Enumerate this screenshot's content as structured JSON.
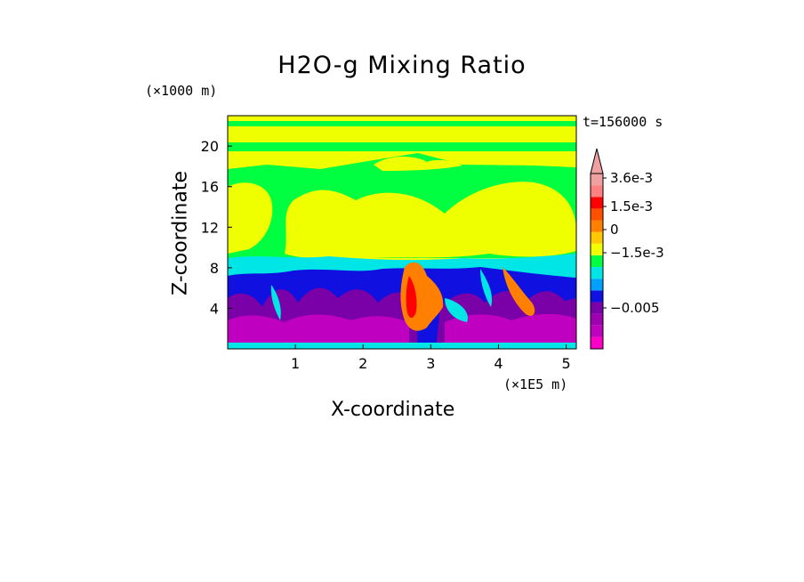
{
  "chart_data": {
    "type": "heatmap",
    "title": "H2O-g Mixing Ratio",
    "xlabel": "X-coordinate",
    "ylabel": "Z-coordinate",
    "x_unit": "(×1E5 m)",
    "y_unit": "(×1000 m)",
    "time_label": "t=156000 s",
    "xlim": [
      0,
      5.15
    ],
    "ylim": [
      0,
      23
    ],
    "x_ticks": [
      "1",
      "2",
      "3",
      "4",
      "5"
    ],
    "x_tick_values": [
      1,
      2,
      3,
      4,
      5
    ],
    "y_ticks": [
      "4",
      "8",
      "12",
      "16",
      "20"
    ],
    "y_tick_values": [
      4,
      8,
      12,
      16,
      20
    ],
    "colorbar": {
      "labels": [
        "3.6e-3",
        "1.5e-3",
        "0",
        "−1.5e-3",
        "−0.005"
      ],
      "colors": [
        "#ff00c8",
        "#c000c0",
        "#a000b0",
        "#7a00a8",
        "#1010e0",
        "#00a0ff",
        "#00e6e6",
        "#00ff40",
        "#f0ff00",
        "#ffc800",
        "#ff8000",
        "#ff5000",
        "#ff0000",
        "#ff8080",
        "#f0a0a0"
      ]
    },
    "layers": [
      {
        "name": "background",
        "color": "#f0ff00"
      },
      {
        "name": "upper-green-band",
        "color": "#00ff40"
      },
      {
        "name": "cyan-layer",
        "color": "#00e6e6"
      },
      {
        "name": "blue-layer",
        "color": "#1010e0"
      },
      {
        "name": "purple-layer",
        "color": "#7a00a8"
      },
      {
        "name": "magenta-layer",
        "color": "#c000c0"
      },
      {
        "name": "orange-plume",
        "color": "#ff8000"
      },
      {
        "name": "red-plume",
        "color": "#ff0000"
      }
    ]
  }
}
